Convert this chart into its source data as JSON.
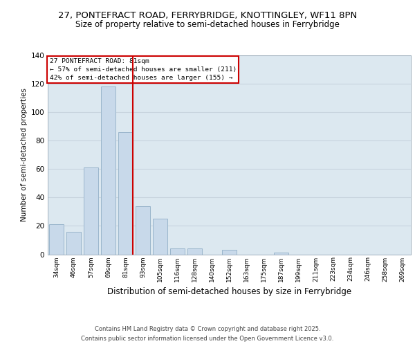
{
  "title1": "27, PONTEFRACT ROAD, FERRYBRIDGE, KNOTTINGLEY, WF11 8PN",
  "title2": "Size of property relative to semi-detached houses in Ferrybridge",
  "xlabel": "Distribution of semi-detached houses by size in Ferrybridge",
  "ylabel": "Number of semi-detached properties",
  "categories": [
    "34sqm",
    "46sqm",
    "57sqm",
    "69sqm",
    "81sqm",
    "93sqm",
    "105sqm",
    "116sqm",
    "128sqm",
    "140sqm",
    "152sqm",
    "163sqm",
    "175sqm",
    "187sqm",
    "199sqm",
    "211sqm",
    "223sqm",
    "234sqm",
    "246sqm",
    "258sqm",
    "269sqm"
  ],
  "values": [
    21,
    16,
    61,
    118,
    86,
    34,
    25,
    4,
    4,
    0,
    3,
    0,
    0,
    1,
    0,
    0,
    0,
    0,
    0,
    0,
    0
  ],
  "bar_color": "#c8d9ea",
  "bar_edge_color": "#9ab5cc",
  "red_line_x": 4.425,
  "annotation_title": "27 PONTEFRACT ROAD: 81sqm",
  "annotation_line1": "← 57% of semi-detached houses are smaller (211)",
  "annotation_line2": "42% of semi-detached houses are larger (155) →",
  "annotation_box_color": "#ffffff",
  "annotation_box_edge": "#cc0000",
  "ylim": [
    0,
    140
  ],
  "yticks": [
    0,
    20,
    40,
    60,
    80,
    100,
    120,
    140
  ],
  "grid_color": "#c8d4de",
  "background_color": "#dce8f0",
  "fig_background": "#ffffff",
  "footer1": "Contains HM Land Registry data © Crown copyright and database right 2025.",
  "footer2": "Contains public sector information licensed under the Open Government Licence v3.0.",
  "title1_fontsize": 9.5,
  "title2_fontsize": 8.5,
  "xlabel_fontsize": 8.5,
  "ylabel_fontsize": 7.5,
  "tick_fontsize": 6.5,
  "footer_fontsize": 6.0
}
